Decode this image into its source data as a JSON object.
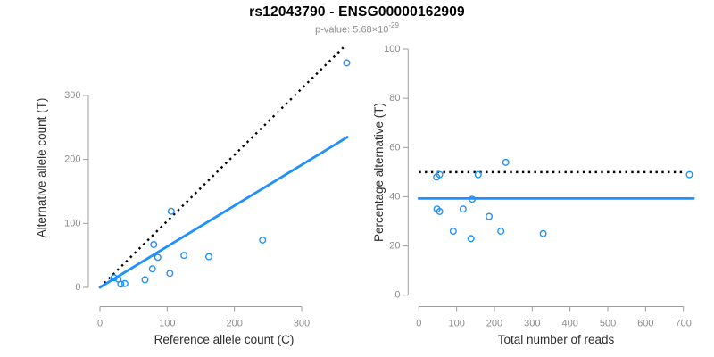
{
  "title": "rs12043790 - ENSG00000162909",
  "subtitle": {
    "base": "p-value: 5.68×10",
    "exponent": "-29"
  },
  "colors": {
    "blue": "#1E90FF",
    "black": "#000000",
    "axis_line": "#9e9e9e",
    "tick_label": "#8c8c8c",
    "axis_title": "#2e2e2e",
    "subtitle_gray": "#8c8c8c"
  },
  "chart_data": [
    {
      "id": "allele-counts",
      "type": "scatter",
      "xlabel": "Reference allele count (C)",
      "ylabel": "Alternative allele count (T)",
      "xticks": [
        0,
        100,
        200,
        300
      ],
      "yticks": [
        0,
        100,
        200,
        300
      ],
      "xlim": [
        0,
        368
      ],
      "ylim": [
        0,
        375
      ],
      "grid": false,
      "points": [
        [
          21,
          15
        ],
        [
          27,
          13
        ],
        [
          31,
          5
        ],
        [
          37,
          6
        ],
        [
          67,
          12
        ],
        [
          78,
          29
        ],
        [
          80,
          67
        ],
        [
          86,
          47
        ],
        [
          104,
          22
        ],
        [
          106,
          119
        ],
        [
          125,
          50
        ],
        [
          162,
          48
        ],
        [
          242,
          74
        ],
        [
          367,
          351
        ]
      ],
      "lines": [
        {
          "name": "identity-line",
          "style": "dotted",
          "color": "black",
          "from": [
            0,
            0
          ],
          "to": [
            362,
            375
          ]
        },
        {
          "name": "regression-line",
          "style": "solid",
          "color": "blue",
          "from": [
            0,
            0
          ],
          "to": [
            368,
            235
          ]
        }
      ]
    },
    {
      "id": "percentage-vs-reads",
      "type": "scatter",
      "xlabel": "Total number of reads",
      "ylabel": "Percentage alternative (T)",
      "xticks": [
        0,
        100,
        200,
        300,
        400,
        500,
        600,
        700
      ],
      "yticks": [
        0,
        20,
        40,
        60,
        80,
        100
      ],
      "xlim": [
        0,
        727
      ],
      "ylim": [
        0,
        100
      ],
      "grid": false,
      "points": [
        [
          47,
          48
        ],
        [
          55,
          49
        ],
        [
          157,
          49
        ],
        [
          230,
          54
        ],
        [
          716,
          49
        ],
        [
          141,
          39
        ],
        [
          48,
          35
        ],
        [
          55,
          34
        ],
        [
          117,
          35
        ],
        [
          186,
          32
        ],
        [
          91,
          26
        ],
        [
          217,
          26
        ],
        [
          138,
          23
        ],
        [
          329,
          25
        ]
      ],
      "lines": [
        {
          "name": "fifty-percent-line",
          "style": "dotted",
          "color": "black",
          "from": [
            0,
            50
          ],
          "to": [
            706,
            50
          ]
        },
        {
          "name": "mean-percentage-line",
          "style": "solid",
          "color": "blue",
          "from": [
            0,
            39.3
          ],
          "to": [
            727,
            39.3
          ]
        }
      ]
    }
  ]
}
